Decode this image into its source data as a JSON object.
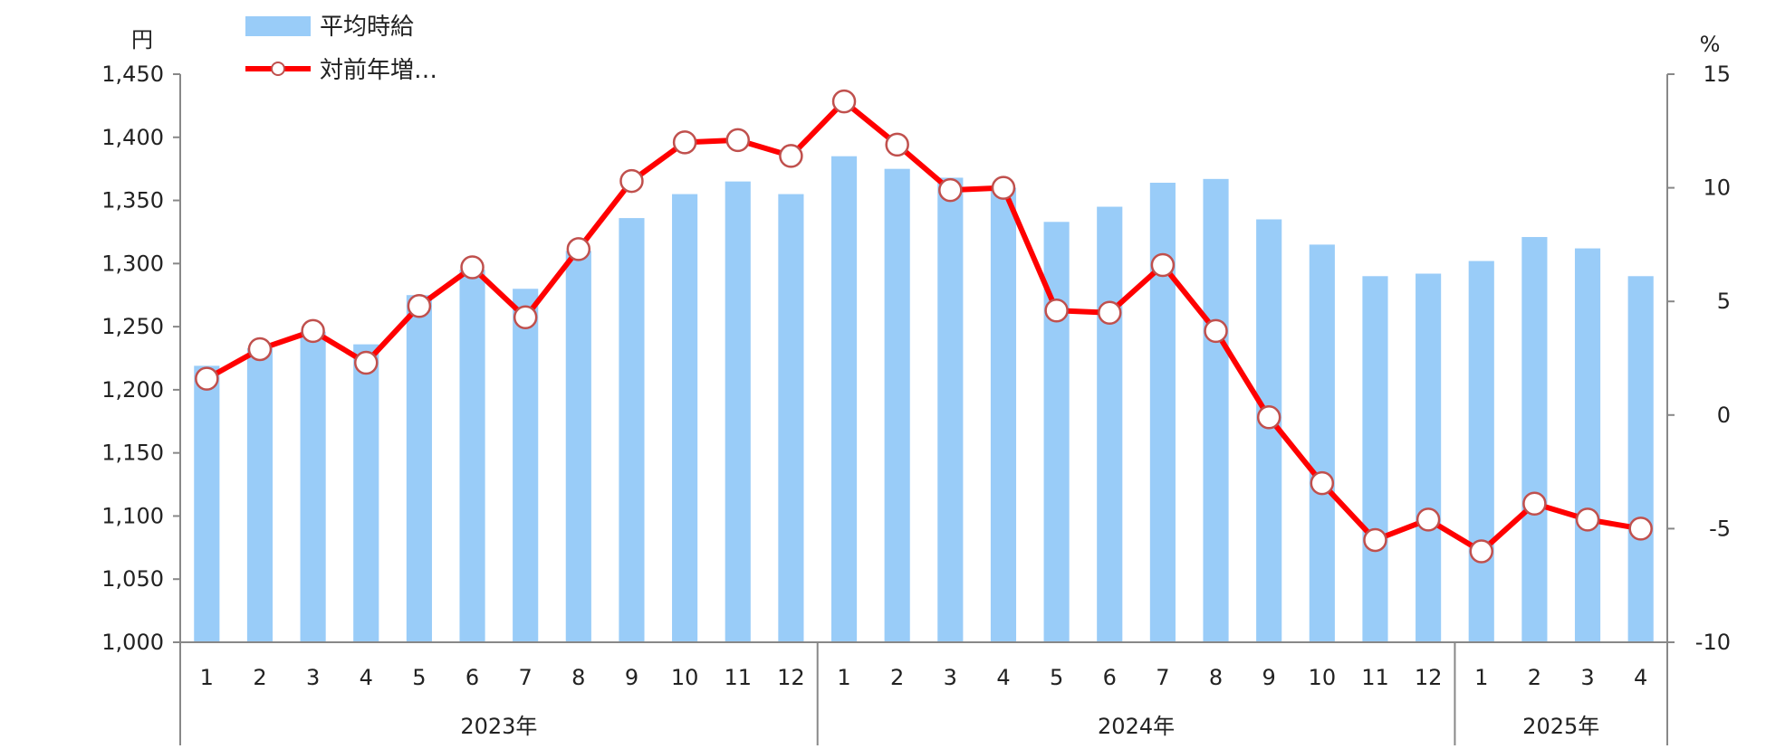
{
  "chart_data": {
    "type": "bar+line",
    "left_axis": {
      "unit": "円",
      "ylim": [
        1000,
        1450
      ],
      "ticks": [
        "1,000",
        "1,050",
        "1,100",
        "1,150",
        "1,200",
        "1,250",
        "1,300",
        "1,350",
        "1,400",
        "1,450"
      ]
    },
    "right_axis": {
      "unit": "%",
      "ylim": [
        -10,
        15
      ],
      "ticks": [
        "-10",
        "-5",
        "0",
        "5",
        "10",
        "15"
      ]
    },
    "categories": [
      "1",
      "2",
      "3",
      "4",
      "5",
      "6",
      "7",
      "8",
      "9",
      "10",
      "11",
      "12",
      "1",
      "2",
      "3",
      "4",
      "5",
      "6",
      "7",
      "8",
      "9",
      "10",
      "11",
      "12",
      "1",
      "2",
      "3",
      "4"
    ],
    "year_groups": [
      {
        "label": "2023年",
        "count": 12
      },
      {
        "label": "2024年",
        "count": 12
      },
      {
        "label": "2025年",
        "count": 4
      }
    ],
    "series": [
      {
        "name": "平均時給",
        "type": "bar",
        "axis": "left",
        "color": "#99ccf8",
        "values": [
          1219,
          1233,
          1246,
          1236,
          1275,
          1295,
          1280,
          1310,
          1336,
          1355,
          1365,
          1355,
          1385,
          1375,
          1368,
          1360,
          1333,
          1345,
          1364,
          1367,
          1335,
          1315,
          1290,
          1292,
          1302,
          1321,
          1312,
          1290
        ]
      },
      {
        "name": "対前年増…",
        "type": "line",
        "axis": "right",
        "color": "#ff0000",
        "values": [
          1.6,
          2.9,
          3.7,
          2.3,
          4.8,
          6.5,
          4.3,
          7.3,
          10.3,
          12.0,
          12.1,
          11.4,
          13.8,
          11.9,
          9.9,
          10.0,
          4.6,
          4.5,
          6.6,
          3.7,
          -0.1,
          -3.0,
          -5.5,
          -4.6,
          -6.0,
          -3.9,
          -4.6,
          -5.0
        ]
      }
    ],
    "legend": {
      "placement": "top-left"
    }
  }
}
